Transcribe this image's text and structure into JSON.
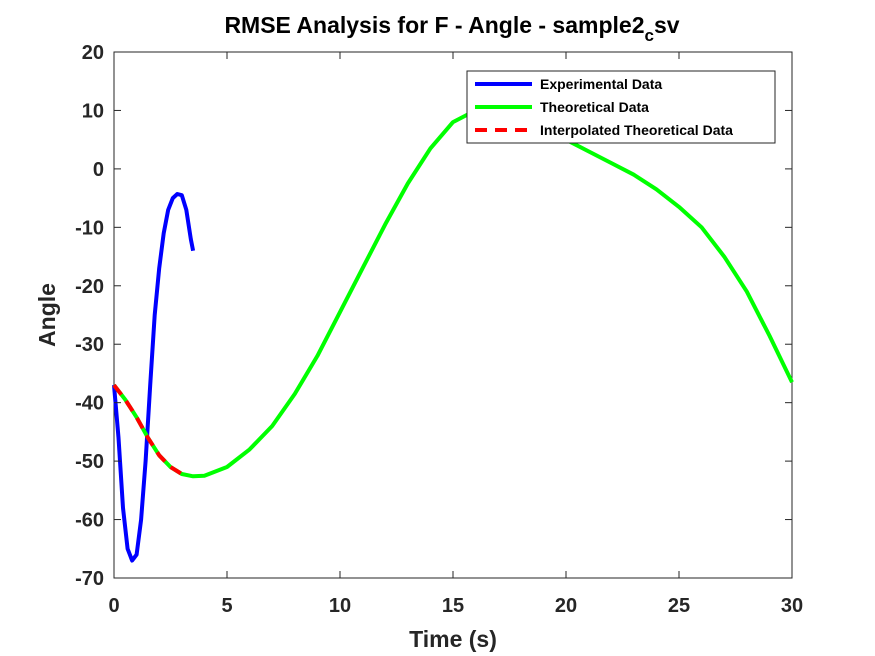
{
  "chart_data": {
    "type": "line",
    "title": "RMSE Analysis for F - Angle - sample2",
    "title_subscript": "c",
    "title_suffix": "sv",
    "xlabel": "Time (s)",
    "ylabel": "Angle",
    "xlim": [
      0,
      30
    ],
    "ylim": [
      -70,
      20
    ],
    "xticks": [
      0,
      5,
      10,
      15,
      20,
      25,
      30
    ],
    "yticks": [
      20,
      10,
      0,
      -10,
      -20,
      -30,
      -40,
      -50,
      -60,
      -70
    ],
    "grid": false,
    "legend_position": "top-right",
    "series": [
      {
        "name": "Experimental Data",
        "color": "#0000ff",
        "style": "solid",
        "x": [
          0.0,
          0.2,
          0.4,
          0.6,
          0.8,
          1.0,
          1.2,
          1.4,
          1.6,
          1.8,
          2.0,
          2.2,
          2.4,
          2.6,
          2.8,
          3.0,
          3.2,
          3.4,
          3.5
        ],
        "y": [
          -37,
          -46,
          -58,
          -65,
          -67,
          -66,
          -60,
          -50,
          -37,
          -25,
          -17,
          -11,
          -7,
          -5,
          -4.3,
          -4.5,
          -7,
          -12,
          -14
        ]
      },
      {
        "name": "Theoretical Data",
        "color": "#00ff00",
        "style": "solid",
        "x": [
          0,
          0.5,
          1,
          1.5,
          2,
          2.5,
          3,
          3.5,
          4,
          5,
          6,
          7,
          8,
          9,
          10,
          11,
          12,
          13,
          14,
          15,
          16,
          17,
          18,
          19,
          20,
          21,
          22,
          23,
          24,
          25,
          26,
          27,
          28,
          29,
          30
        ],
        "y": [
          -37,
          -39.5,
          -42.5,
          -46,
          -49,
          -51,
          -52.2,
          -52.6,
          -52.5,
          -51,
          -48,
          -44,
          -38.5,
          -32,
          -24.5,
          -17,
          -9.5,
          -2.5,
          3.5,
          8,
          10,
          10,
          9,
          7,
          5,
          3,
          1,
          -1,
          -3.5,
          -6.5,
          -10,
          -15,
          -21,
          -28.5,
          -36.5
        ]
      },
      {
        "name": "Interpolated Theoretical Data",
        "color": "#ff0000",
        "style": "dashed",
        "x": [
          0,
          0.5,
          1,
          1.5,
          2,
          2.5,
          3
        ],
        "y": [
          -37,
          -39.5,
          -42.5,
          -46,
          -49,
          -51,
          -52.2
        ]
      }
    ]
  }
}
